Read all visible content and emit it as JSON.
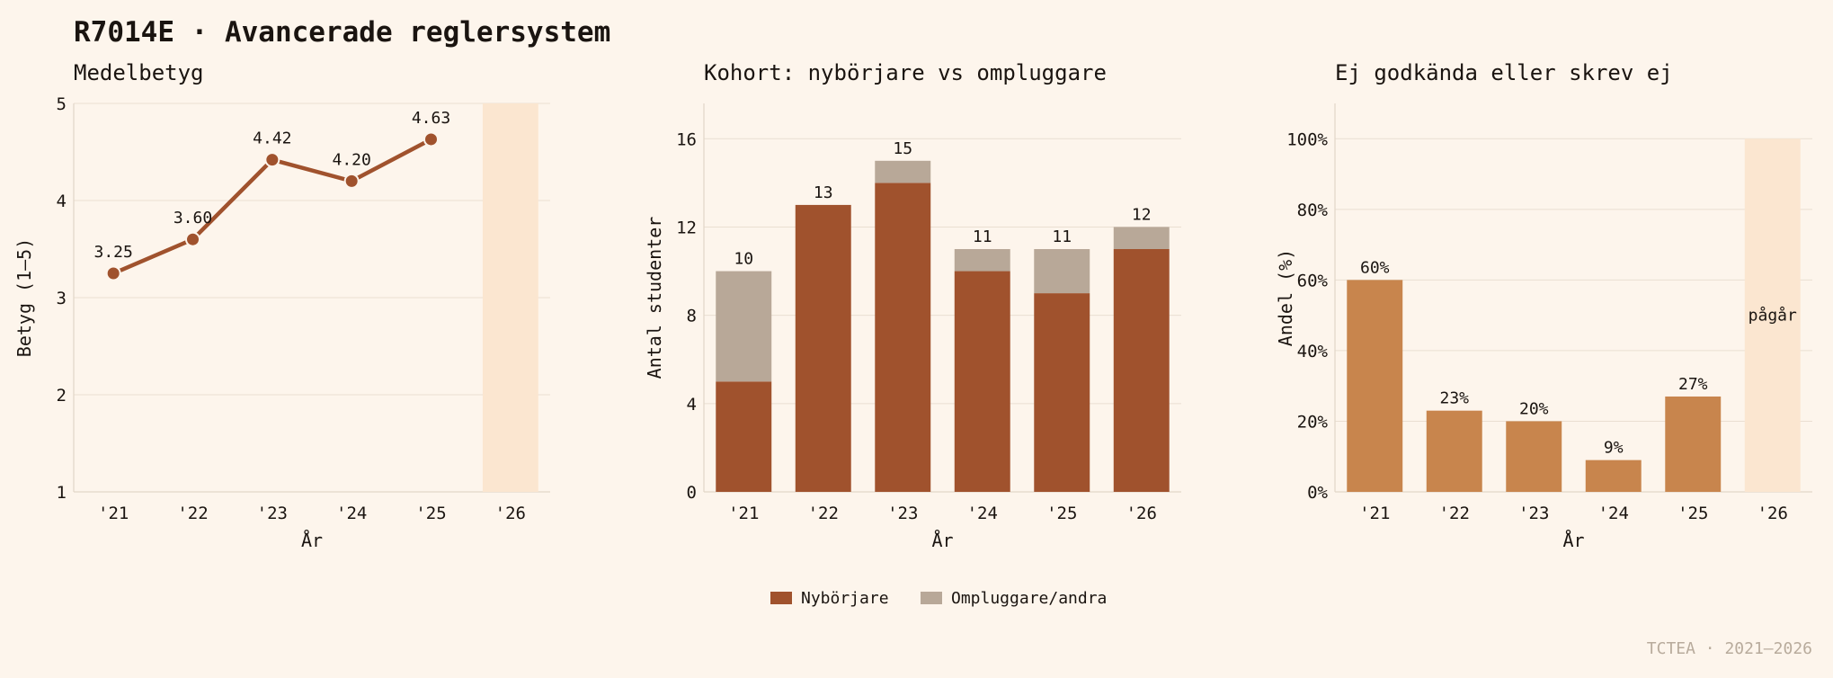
{
  "title": "R7014E · Avancerade reglersystem",
  "footer": "TCTEA · 2021–2026",
  "colors": {
    "background": "#fdf5ec",
    "grid": "#eadfd2",
    "axis": "#e2d6c8",
    "line": "#a0522d",
    "bar_primary": "#a0522d",
    "bar_secondary": "#b8a898",
    "bar_fail": "#c8854d",
    "shade": "#fbe6d0"
  },
  "chart_data": [
    {
      "type": "line",
      "title": "Medelbetyg",
      "xlabel": "År",
      "ylabel": "Betyg (1–5)",
      "categories": [
        "'21",
        "'22",
        "'23",
        "'24",
        "'25",
        "'26"
      ],
      "yticks": [
        "1",
        "2",
        "3",
        "4",
        "5"
      ],
      "ylim": [
        1,
        5
      ],
      "series": [
        {
          "values": [
            3.25,
            3.6,
            4.42,
            4.2,
            4.63,
            null
          ]
        }
      ],
      "data_labels": [
        "3.25",
        "3.60",
        "4.42",
        "4.20",
        "4.63"
      ],
      "shaded_category": "'26",
      "grid": true
    },
    {
      "type": "bar",
      "stacked": true,
      "title": "Kohort: nybörjare vs ompluggare",
      "xlabel": "År",
      "ylabel": "Antal studenter",
      "categories": [
        "'21",
        "'22",
        "'23",
        "'24",
        "'25",
        "'26"
      ],
      "yticks": [
        "0",
        "4",
        "8",
        "12",
        "16"
      ],
      "ylim": [
        0,
        17.6
      ],
      "series": [
        {
          "name": "Nybörjare",
          "values": [
            5,
            13,
            14,
            10,
            9,
            11
          ]
        },
        {
          "name": "Ompluggare/andra",
          "values": [
            5,
            0,
            1,
            1,
            2,
            1
          ]
        }
      ],
      "totals": [
        "10",
        "13",
        "15",
        "11",
        "11",
        "12"
      ],
      "legend": "bottom-center",
      "grid": true
    },
    {
      "type": "bar",
      "title": "Ej godkända eller skrev ej",
      "xlabel": "År",
      "ylabel": "Andel (%)",
      "categories": [
        "'21",
        "'22",
        "'23",
        "'24",
        "'25",
        "'26"
      ],
      "yticks": [
        "0%",
        "20%",
        "40%",
        "60%",
        "80%",
        "100%"
      ],
      "ylim": [
        0,
        110
      ],
      "series": [
        {
          "values": [
            60,
            23,
            20,
            9,
            27,
            null
          ]
        }
      ],
      "data_labels": [
        "60%",
        "23%",
        "20%",
        "9%",
        "27%"
      ],
      "shaded_category": "'26",
      "shaded_label": "pågår",
      "grid": true
    }
  ]
}
